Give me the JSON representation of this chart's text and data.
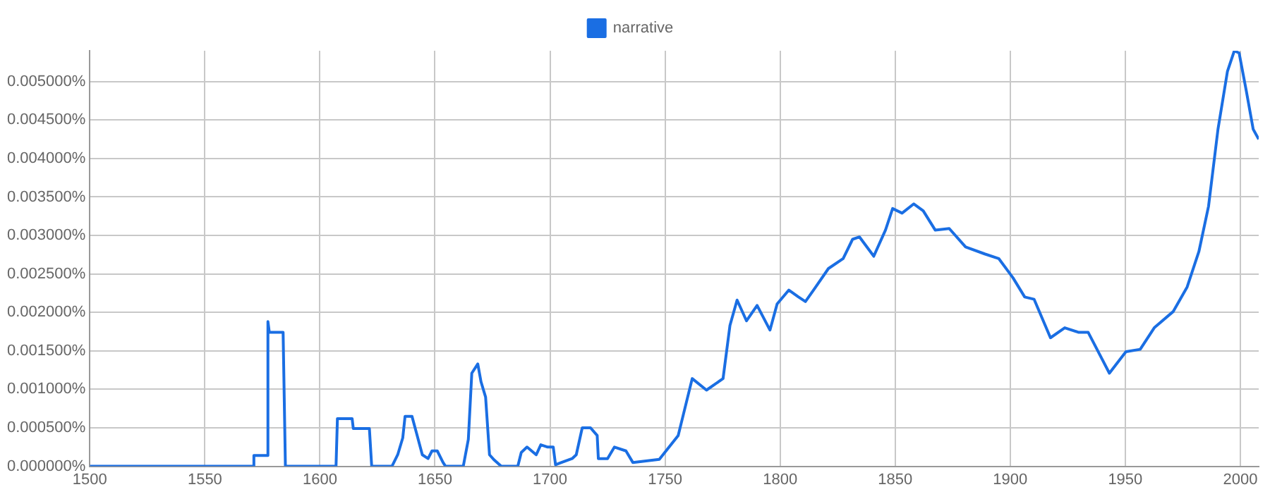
{
  "chart_data": {
    "type": "line",
    "x": [
      1500,
      1571,
      1571.3,
      1577,
      1577.4,
      1578,
      1584,
      1585,
      1607,
      1607.6,
      1614,
      1614.5,
      1621.5,
      1622.5,
      1631.3,
      1633.8,
      1636,
      1637,
      1640,
      1642,
      1644.5,
      1647,
      1648.7,
      1651,
      1653.5,
      1654.6,
      1662.3,
      1664.5,
      1666,
      1668.6,
      1670,
      1672,
      1673.7,
      1675.8,
      1678.8,
      1686,
      1687.5,
      1690,
      1694,
      1696,
      1699,
      1701.4,
      1702.4,
      1705,
      1709.6,
      1711.4,
      1714,
      1717.6,
      1720.5,
      1721,
      1725,
      1728,
      1733,
      1736,
      1747.5,
      1755.7,
      1761.8,
      1768,
      1775.2,
      1778.2,
      1781.3,
      1785.4,
      1790,
      1795.6,
      1798.7,
      1803.8,
      1808,
      1811,
      1815,
      1821,
      1827.4,
      1831.5,
      1834.5,
      1840.7,
      1845.8,
      1848.9,
      1853,
      1858.1,
      1862.2,
      1867.4,
      1873.5,
      1880.6,
      1888.9,
      1895,
      1901.2,
      1906.3,
      1910.4,
      1917.5,
      1923.7,
      1929.8,
      1933.9,
      1943.1,
      1950.3,
      1956.5,
      1962.6,
      1970.8,
      1976.9,
      1982,
      1986.2,
      1990.3,
      1994.4,
      1997.4,
      1999.5,
      2002.6,
      2005.6,
      2008
    ],
    "series": [
      {
        "name": "narrative",
        "color": "#1a6ee3",
        "values": [
          0,
          0,
          0.00014,
          0.00014,
          0.00188,
          0.00174,
          0.00174,
          0,
          0,
          0.00062,
          0.00062,
          0.00049,
          0.00049,
          0,
          0,
          0.00015,
          0.00037,
          0.00065,
          0.00065,
          0.00043,
          0.00015,
          0.0001,
          0.0002,
          0.0002,
          5e-05,
          0,
          0,
          0.00035,
          0.00121,
          0.00133,
          0.0011,
          0.0009,
          0.00015,
          8e-05,
          0,
          0,
          0.00018,
          0.00025,
          0.00015,
          0.00028,
          0.00025,
          0.00025,
          2e-05,
          5e-05,
          0.0001,
          0.00015,
          0.0005,
          0.0005,
          0.0004,
          0.0001,
          0.0001,
          0.00025,
          0.0002,
          5e-05,
          9e-05,
          0.0004,
          0.00114,
          0.00099,
          0.00114,
          0.00183,
          0.00216,
          0.00189,
          0.00209,
          0.00177,
          0.00211,
          0.00229,
          0.0022,
          0.00214,
          0.00231,
          0.00257,
          0.0027,
          0.00295,
          0.00298,
          0.00273,
          0.00307,
          0.00335,
          0.00329,
          0.00341,
          0.00332,
          0.00307,
          0.00309,
          0.00285,
          0.00276,
          0.0027,
          0.00245,
          0.0022,
          0.00217,
          0.00167,
          0.0018,
          0.00174,
          0.00174,
          0.00121,
          0.00149,
          0.00152,
          0.0018,
          0.00201,
          0.00233,
          0.00279,
          0.00338,
          0.00438,
          0.00513,
          0.0054,
          0.00537,
          0.00488,
          0.00438,
          0.00425
        ]
      }
    ],
    "xlim": [
      1500,
      2008
    ],
    "xticks": [
      1500,
      1550,
      1600,
      1650,
      1700,
      1750,
      1800,
      1850,
      1900,
      1950,
      2000
    ],
    "ylim": [
      0,
      0.0054
    ],
    "yticks": [
      {
        "value": 0,
        "label": "0.000000%"
      },
      {
        "value": 0.0005,
        "label": "0.000500%"
      },
      {
        "value": 0.001,
        "label": "0.001000%"
      },
      {
        "value": 0.0015,
        "label": "0.001500%"
      },
      {
        "value": 0.002,
        "label": "0.002000%"
      },
      {
        "value": 0.0025,
        "label": "0.002500%"
      },
      {
        "value": 0.003,
        "label": "0.003000%"
      },
      {
        "value": 0.0035,
        "label": "0.003500%"
      },
      {
        "value": 0.004,
        "label": "0.004000%"
      },
      {
        "value": 0.0045,
        "label": "0.004500%"
      },
      {
        "value": 0.005,
        "label": "0.005000%"
      }
    ],
    "grid": true,
    "legend": "top"
  }
}
